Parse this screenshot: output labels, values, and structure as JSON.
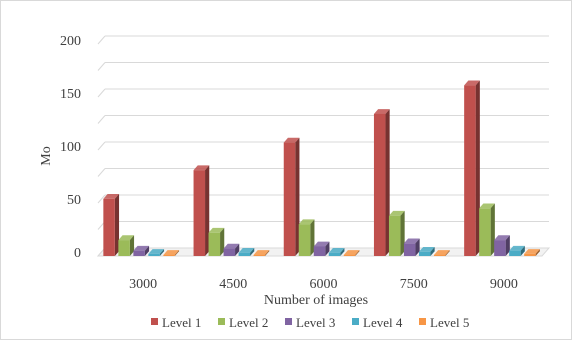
{
  "chart_data": {
    "type": "bar",
    "style": "3d-clustered-column",
    "categories": [
      "3000",
      "4500",
      "6000",
      "7500",
      "9000"
    ],
    "series": [
      {
        "name": "Level 1",
        "color": "#c0504d",
        "values": [
          54,
          81,
          107,
          134,
          161
        ]
      },
      {
        "name": "Level 2",
        "color": "#9bbb59",
        "values": [
          15,
          22,
          30,
          38,
          45
        ]
      },
      {
        "name": "Level 3",
        "color": "#8064a2",
        "values": [
          5,
          7,
          9,
          12,
          15
        ]
      },
      {
        "name": "Level 4",
        "color": "#4bacc6",
        "values": [
          2,
          3,
          3,
          4,
          5
        ]
      },
      {
        "name": "Level 5",
        "color": "#f79646",
        "values": [
          1,
          1,
          1,
          1,
          2
        ]
      }
    ],
    "xlabel": "Number of images",
    "ylabel": "Mo",
    "ylim": [
      0,
      200
    ],
    "yticks": [
      0,
      50,
      100,
      150,
      200
    ],
    "grid": true,
    "legend_position": "bottom"
  }
}
